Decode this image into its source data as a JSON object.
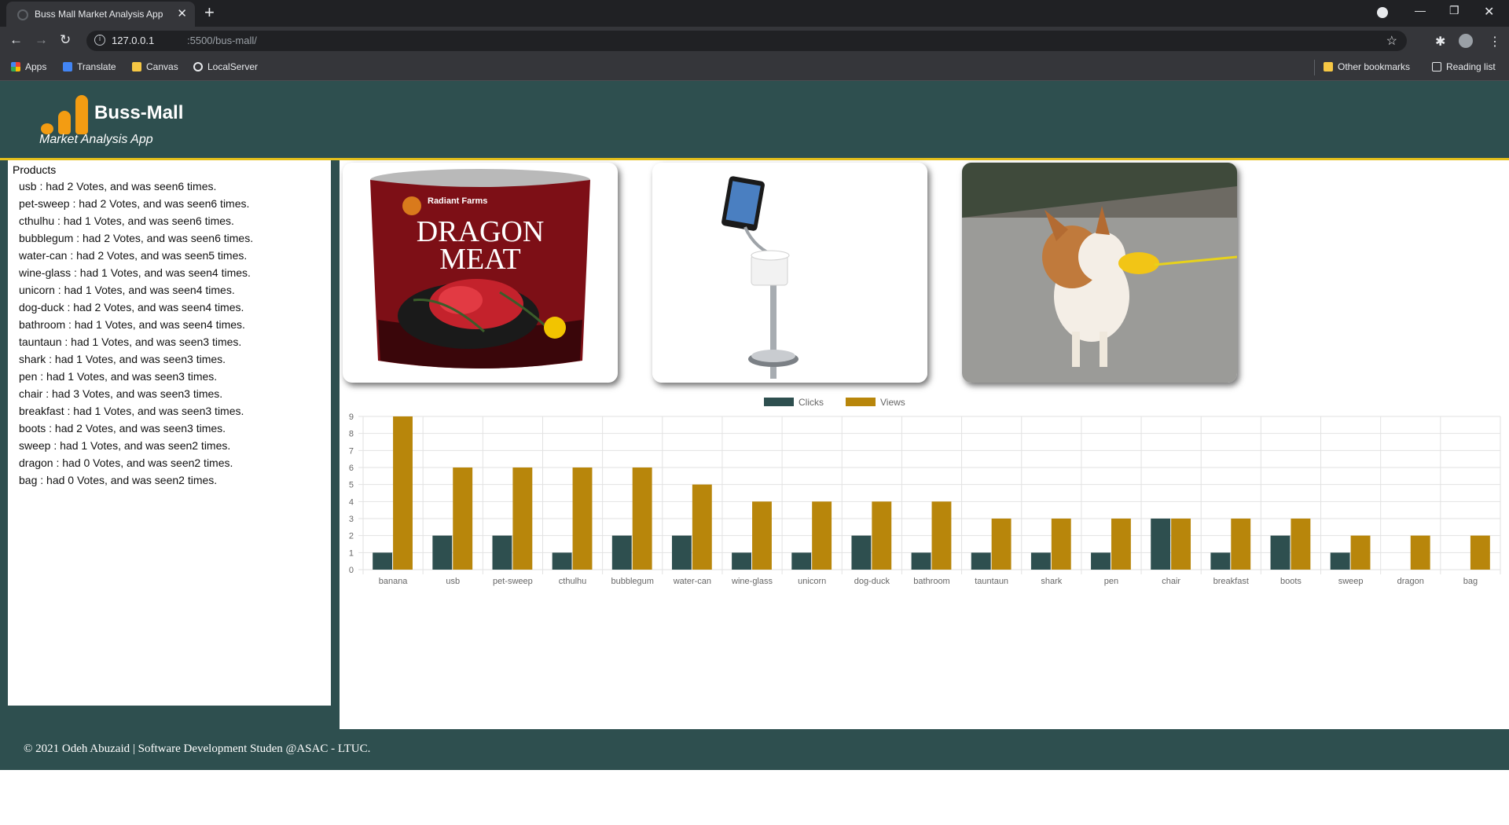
{
  "browser": {
    "tab_title": "Buss Mall Market Analysis App",
    "url_host": "127.0.0.1",
    "url_rest": ":5500/bus-mall/",
    "bookmarks": [
      "Apps",
      "Translate",
      "Canvas",
      "LocalServer"
    ],
    "other_bookmarks": "Other bookmarks",
    "reading_list": "Reading list"
  },
  "header": {
    "title": "Buss-Mall",
    "subtitle": "Market Analysis App"
  },
  "sidebar": {
    "heading": "Products",
    "items": [
      "usb : had 2 Votes, and was seen6 times.",
      "pet-sweep : had 2 Votes, and was seen6 times.",
      "cthulhu : had 1 Votes, and was seen6 times.",
      "bubblegum : had 2 Votes, and was seen6 times.",
      "water-can : had 2 Votes, and was seen5 times.",
      "wine-glass : had 1 Votes, and was seen4 times.",
      "unicorn : had 1 Votes, and was seen4 times.",
      "dog-duck : had 2 Votes, and was seen4 times.",
      "bathroom : had 1 Votes, and was seen4 times.",
      "tauntaun : had 1 Votes, and was seen3 times.",
      "shark : had 1 Votes, and was seen3 times.",
      "pen : had 1 Votes, and was seen3 times.",
      "chair : had 3 Votes, and was seen3 times.",
      "breakfast : had 1 Votes, and was seen3 times.",
      "boots : had 2 Votes, and was seen3 times.",
      "sweep : had 1 Votes, and was seen2 times.",
      "dragon : had 0 Votes, and was seen2 times.",
      "bag : had 0 Votes, and was seen2 times."
    ]
  },
  "product_images": [
    {
      "name": "dragon",
      "caption_lines": [
        "DRAGON",
        "MEAT"
      ],
      "brand": "Radiant Farms"
    },
    {
      "name": "bathroom"
    },
    {
      "name": "dog-duck"
    }
  ],
  "colors": {
    "primary": "#2e4f4f",
    "accent": "#b8860b",
    "header_border": "#e5c01c",
    "logo": "#f39c12"
  },
  "chart_data": {
    "type": "bar",
    "categories": [
      "banana",
      "usb",
      "pet-sweep",
      "cthulhu",
      "bubblegum",
      "water-can",
      "wine-glass",
      "unicorn",
      "dog-duck",
      "bathroom",
      "tauntaun",
      "shark",
      "pen",
      "chair",
      "breakfast",
      "boots",
      "sweep",
      "dragon",
      "bag"
    ],
    "series": [
      {
        "name": "Clicks",
        "color": "#2e4f4f",
        "values": [
          1,
          2,
          2,
          1,
          2,
          2,
          1,
          1,
          2,
          1,
          1,
          1,
          1,
          3,
          1,
          2,
          1,
          0,
          0
        ]
      },
      {
        "name": "Views",
        "color": "#b8860b",
        "values": [
          9,
          6,
          6,
          6,
          6,
          5,
          4,
          4,
          4,
          4,
          3,
          3,
          3,
          3,
          3,
          3,
          2,
          2,
          2
        ]
      }
    ],
    "ylim": [
      0,
      9
    ],
    "yticks": [
      0,
      1,
      2,
      3,
      4,
      5,
      6,
      7,
      8,
      9
    ],
    "legend": "top-center",
    "grid": true
  },
  "footer": {
    "text": "© 2021 Odeh Abuzaid | Software Development Studen @ASAC - LTUC."
  }
}
